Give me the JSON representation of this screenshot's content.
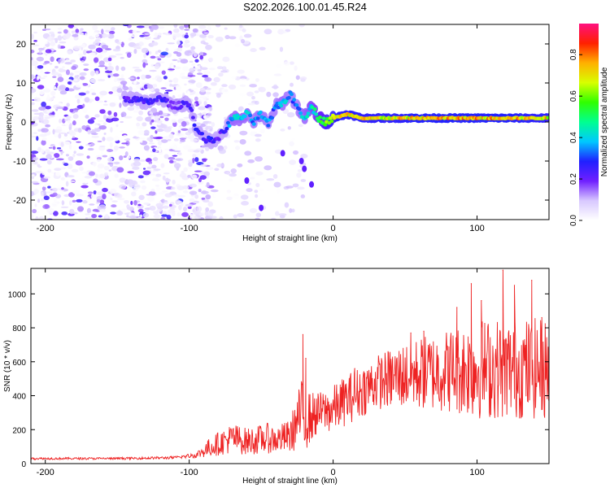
{
  "title": "S202.2026.100.01.45.R24",
  "chart_data": [
    {
      "type": "heatmap",
      "name": "spectrogram",
      "xlabel": "Height of straight line (km)",
      "ylabel": "Frequency (Hz)",
      "xlim": [
        -210,
        150
      ],
      "ylim": [
        -25,
        25
      ],
      "xticks": [
        -200,
        -100,
        0,
        100
      ],
      "xtick_labels": [
        "-200",
        "-100",
        "0",
        "100"
      ],
      "yticks": [
        -20,
        -10,
        0,
        10,
        20
      ],
      "ytick_labels": [
        "-20",
        "-10",
        "0",
        "10",
        "20"
      ],
      "colorbar": {
        "label": "Normalized spectral amplitude",
        "range": [
          0,
          0.95
        ],
        "ticks": [
          0,
          0.2,
          0.4,
          0.6,
          0.8
        ],
        "tick_labels": [
          "0.0",
          "0.2",
          "0.4",
          "0.6",
          "0.8"
        ],
        "colors": [
          "#ffffff",
          "#d8c8ff",
          "#7020ff",
          "#2020ff",
          "#00c8ff",
          "#00ff90",
          "#30ff00",
          "#d8ff00",
          "#ffb000",
          "#ff2000",
          "#ff1080"
        ]
      },
      "ridge": {
        "x": [
          -140,
          -130,
          -120,
          -110,
          -100,
          -95,
          -90,
          -85,
          -80,
          -75,
          -70,
          -65,
          -60,
          -55,
          -50,
          -45,
          -40,
          -35,
          -30,
          -25,
          -20,
          -15,
          -10,
          -5,
          0,
          10,
          20,
          40,
          60,
          80,
          100,
          120,
          150
        ],
        "frequency": [
          6,
          5,
          6,
          4,
          5,
          -2,
          -4,
          -5,
          -4,
          -2,
          1,
          1,
          2,
          0,
          2,
          -1,
          4,
          5,
          7,
          4,
          1,
          4,
          1,
          0,
          1,
          2,
          1,
          1,
          1,
          1,
          1,
          1,
          1
        ],
        "amplitude": [
          0.25,
          0.3,
          0.3,
          0.2,
          0.3,
          0.3,
          0.3,
          0.3,
          0.25,
          0.3,
          0.45,
          0.45,
          0.45,
          0.4,
          0.45,
          0.4,
          0.4,
          0.45,
          0.4,
          0.4,
          0.45,
          0.5,
          0.55,
          0.7,
          0.8,
          0.8,
          0.8,
          0.8,
          0.85,
          0.85,
          0.85,
          0.85,
          0.8
        ]
      }
    },
    {
      "type": "line",
      "name": "snr",
      "xlabel": "Height of straight line (km)",
      "ylabel": "SNR (10 * v/v)",
      "xlim": [
        -210,
        150
      ],
      "ylim": [
        0,
        1150
      ],
      "xticks": [
        -200,
        -100,
        0,
        100
      ],
      "xtick_labels": [
        "-200",
        "-100",
        "0",
        "100"
      ],
      "yticks": [
        0,
        200,
        400,
        600,
        800,
        1000
      ],
      "ytick_labels": [
        "0",
        "200",
        "400",
        "600",
        "800",
        "1000"
      ],
      "color": "#ee2222",
      "envelope": {
        "x": [
          -210,
          -150,
          -110,
          -95,
          -85,
          -70,
          -60,
          -45,
          -40,
          -30,
          -22,
          -20,
          -10,
          0,
          10,
          30,
          50,
          80,
          100,
          120,
          150
        ],
        "mean": [
          30,
          30,
          35,
          50,
          100,
          150,
          130,
          150,
          140,
          160,
          300,
          250,
          300,
          320,
          380,
          480,
          520,
          550,
          560,
          560,
          560
        ],
        "spread": [
          8,
          8,
          10,
          20,
          60,
          90,
          80,
          90,
          80,
          100,
          200,
          180,
          120,
          140,
          150,
          160,
          200,
          250,
          300,
          300,
          300
        ]
      },
      "peaks": [
        {
          "x": -21,
          "y": 760
        },
        {
          "x": -19,
          "y": 620
        },
        {
          "x": 15,
          "y": 560
        },
        {
          "x": 54,
          "y": 770
        },
        {
          "x": 63,
          "y": 780
        },
        {
          "x": 86,
          "y": 920
        },
        {
          "x": 96,
          "y": 1060
        },
        {
          "x": 103,
          "y": 960
        },
        {
          "x": 118,
          "y": 1140
        },
        {
          "x": 126,
          "y": 1050
        },
        {
          "x": 138,
          "y": 1080
        },
        {
          "x": 145,
          "y": 860
        }
      ]
    }
  ]
}
